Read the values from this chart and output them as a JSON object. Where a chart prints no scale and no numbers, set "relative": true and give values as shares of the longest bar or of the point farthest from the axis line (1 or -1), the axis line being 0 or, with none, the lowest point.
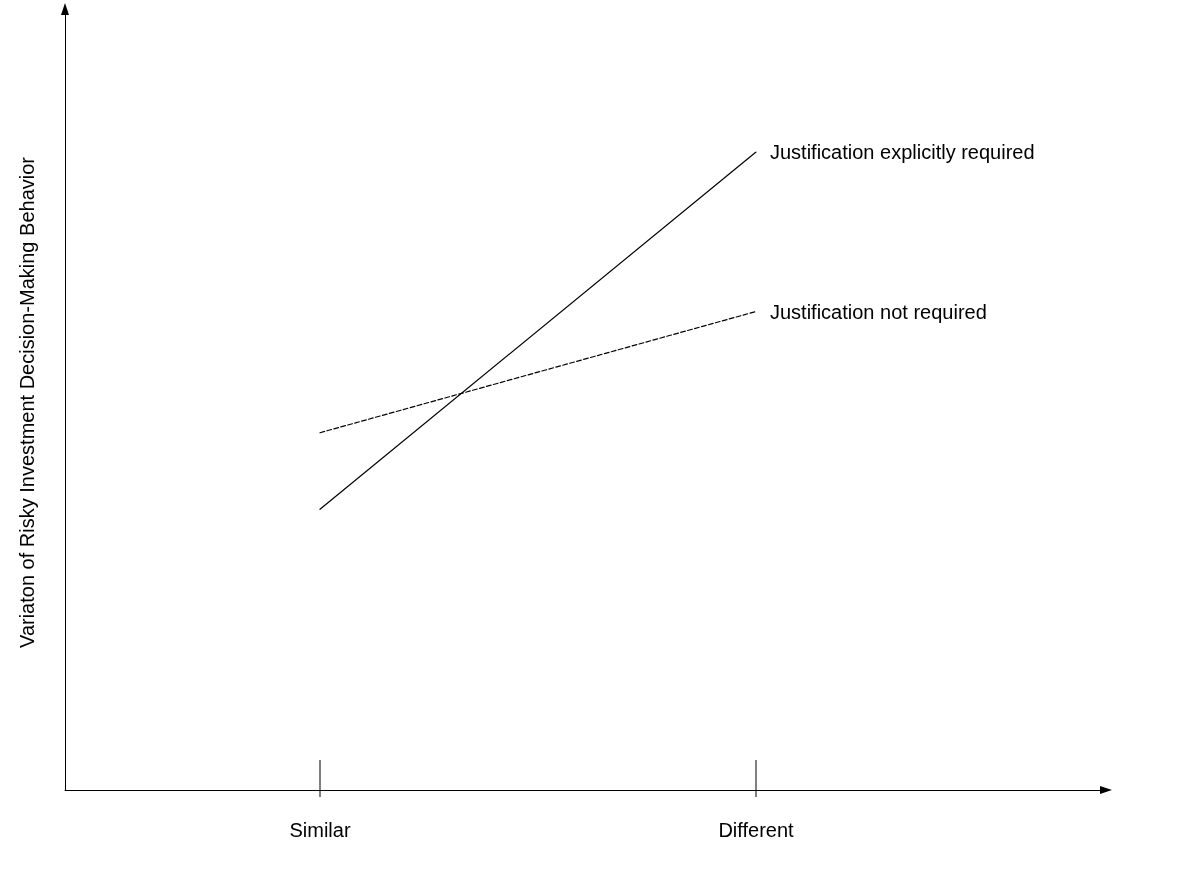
{
  "chart_data": {
    "type": "line",
    "relative": true,
    "ylabel": "Variaton of Risky Investment Decision-Making Behavior",
    "categories": [
      "Similar",
      "Different"
    ],
    "grid": false,
    "legend": false,
    "marker": "none",
    "series": [
      {
        "name": "Justification explicitly required",
        "color": "#000000",
        "line_style": "solid",
        "values": [
          0.44,
          1
        ]
      },
      {
        "name": "Justification not required",
        "color": "#000000",
        "line_style": "dashed",
        "values": [
          0.56,
          0.75
        ]
      }
    ]
  }
}
